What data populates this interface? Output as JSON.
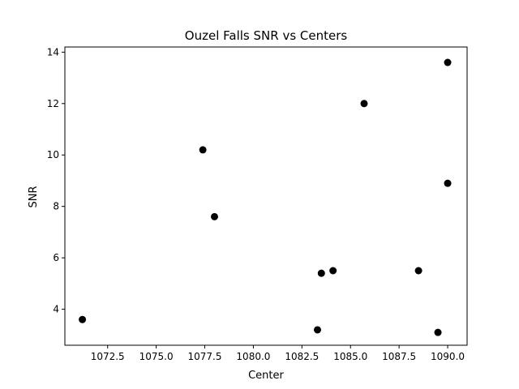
{
  "chart_data": {
    "type": "scatter",
    "title": "Ouzel Falls SNR vs Centers",
    "xlabel": "Center",
    "ylabel": "SNR",
    "xlim": [
      1070.3,
      1091.0
    ],
    "ylim": [
      2.6,
      14.2
    ],
    "xticks": [
      1072.5,
      1075.0,
      1077.5,
      1080.0,
      1082.5,
      1085.0,
      1087.5,
      1090.0
    ],
    "xtick_labels": [
      "1072.5",
      "1075.0",
      "1077.5",
      "1080.0",
      "1082.5",
      "1085.0",
      "1087.5",
      "1090.0"
    ],
    "yticks": [
      4,
      6,
      8,
      10,
      12,
      14
    ],
    "ytick_labels": [
      "4",
      "6",
      "8",
      "10",
      "12",
      "14"
    ],
    "grid": false,
    "marker_color": "#000000",
    "points": [
      {
        "x": 1071.2,
        "y": 3.6
      },
      {
        "x": 1077.4,
        "y": 10.2
      },
      {
        "x": 1078.0,
        "y": 7.6
      },
      {
        "x": 1083.3,
        "y": 3.2
      },
      {
        "x": 1083.5,
        "y": 5.4
      },
      {
        "x": 1084.1,
        "y": 5.5
      },
      {
        "x": 1085.7,
        "y": 12.0
      },
      {
        "x": 1088.5,
        "y": 5.5
      },
      {
        "x": 1089.5,
        "y": 3.1
      },
      {
        "x": 1090.0,
        "y": 13.6
      },
      {
        "x": 1090.0,
        "y": 8.9
      }
    ]
  }
}
